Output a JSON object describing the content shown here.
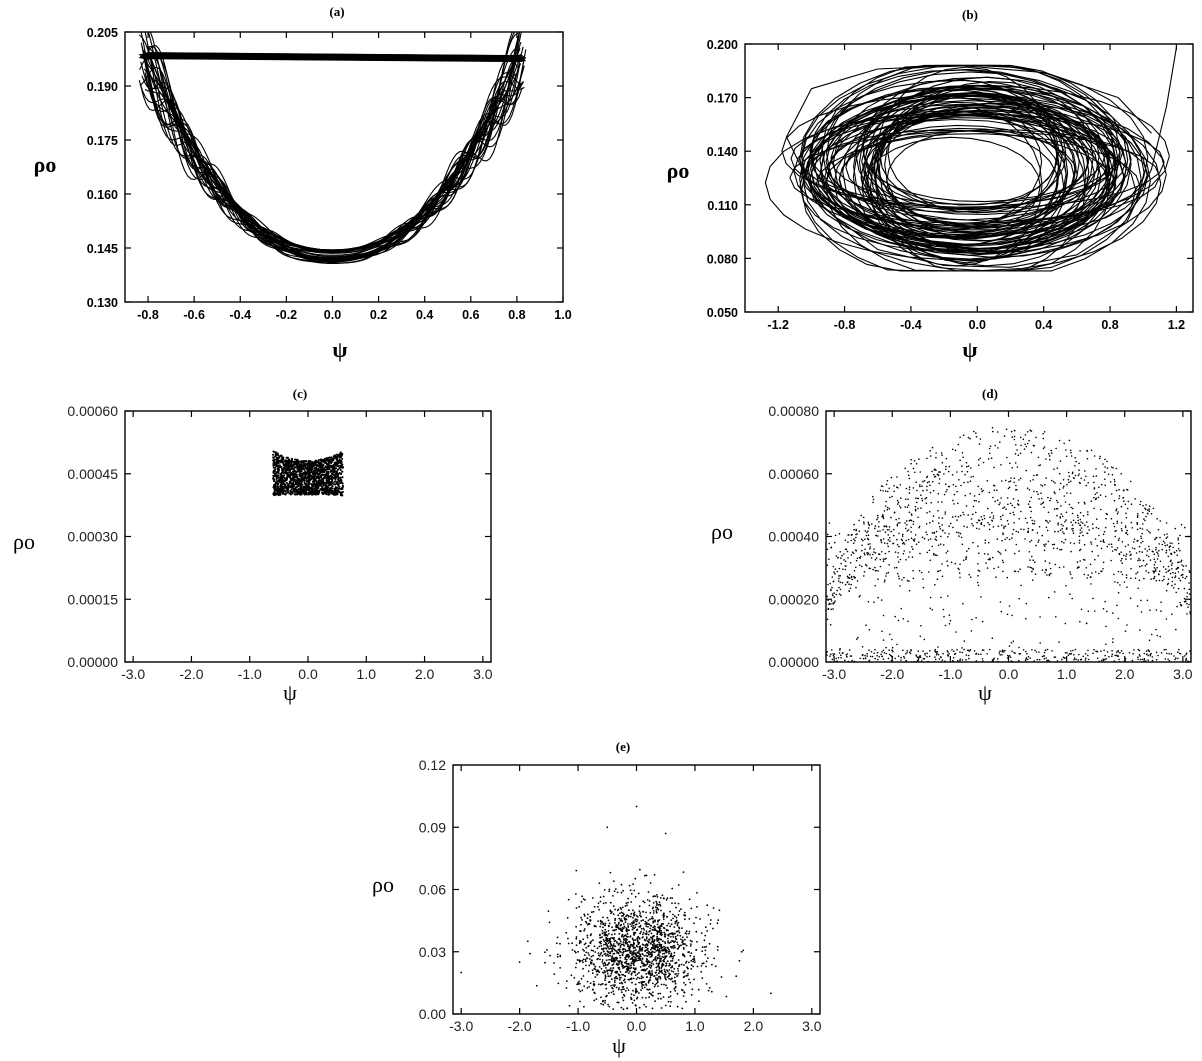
{
  "chart_data": [
    {
      "id": "a",
      "type": "line",
      "panel_label": "(a)",
      "xlabel": "ψ",
      "ylabel": "ρo",
      "xlim": [
        -0.9,
        1.0
      ],
      "ylim": [
        0.13,
        0.205
      ],
      "xticks": [
        -0.8,
        -0.6,
        -0.4,
        -0.2,
        0.0,
        0.2,
        0.4,
        0.6,
        0.8,
        1.0
      ],
      "xtick_labels": [
        "-0.8",
        "-0.6",
        "-0.4",
        "-0.2",
        "0.0",
        "0.2",
        "0.4",
        "0.6",
        "0.8",
        "1.0"
      ],
      "yticks": [
        0.13,
        0.145,
        0.16,
        0.175,
        0.19,
        0.205
      ],
      "ytick_labels": [
        "0.130",
        "0.145",
        "0.160",
        "0.175",
        "0.190",
        "0.205"
      ],
      "series": [
        {
          "style": "phase-trajectory",
          "x": [
            -0.8,
            -0.72,
            -0.62,
            -0.5,
            -0.38,
            -0.26,
            -0.14,
            -0.05,
            0.0,
            0.05,
            0.14,
            0.26,
            0.38,
            0.5,
            0.62,
            0.72,
            0.8
          ],
          "y": [
            0.198,
            0.191,
            0.181,
            0.17,
            0.161,
            0.153,
            0.146,
            0.142,
            0.141,
            0.142,
            0.146,
            0.153,
            0.161,
            0.17,
            0.181,
            0.191,
            0.198
          ]
        }
      ]
    },
    {
      "id": "b",
      "type": "line",
      "panel_label": "(b)",
      "xlabel": "ψ",
      "ylabel": "ρo",
      "xlim": [
        -1.4,
        1.3
      ],
      "ylim": [
        0.05,
        0.2
      ],
      "xticks": [
        -1.2,
        -0.8,
        -0.4,
        0.0,
        0.4,
        0.8,
        1.2
      ],
      "xtick_labels": [
        "-1.2",
        "-0.8",
        "-0.4",
        "0.0",
        "0.4",
        "0.8",
        "1.2"
      ],
      "yticks": [
        0.05,
        0.08,
        0.11,
        0.14,
        0.17,
        0.2
      ],
      "ytick_labels": [
        "0.050",
        "0.080",
        "0.110",
        "0.140",
        "0.170",
        "0.200"
      ],
      "series": [
        {
          "style": "phase-trajectory",
          "x": [
            1.2,
            1.14,
            1.05,
            0.9,
            0.6,
            0.2,
            -0.2,
            -0.6,
            -0.95,
            -1.15,
            -1.0,
            -0.6,
            -0.1,
            0.4,
            0.85,
            1.05
          ],
          "y": [
            0.198,
            0.165,
            0.13,
            0.1,
            0.082,
            0.075,
            0.076,
            0.085,
            0.11,
            0.148,
            0.175,
            0.186,
            0.188,
            0.184,
            0.17,
            0.15
          ]
        }
      ]
    },
    {
      "id": "c",
      "type": "scatter",
      "panel_label": "(c)",
      "xlabel": "ψ",
      "ylabel": "ρo",
      "xlim": [
        -3.14,
        3.14
      ],
      "ylim": [
        0.0,
        0.0006
      ],
      "xticks": [
        -3.0,
        -2.0,
        -1.0,
        0.0,
        1.0,
        2.0,
        3.0
      ],
      "xtick_labels": [
        "-3.0",
        "-2.0",
        "-1.0",
        "0.0",
        "1.0",
        "2.0",
        "3.0"
      ],
      "yticks": [
        0.0,
        0.00015,
        0.0003,
        0.00045,
        0.0006
      ],
      "ytick_labels": [
        "0.00000",
        "0.00015",
        "0.00030",
        "0.00045",
        "0.00060"
      ],
      "series": [
        {
          "style": "poincare-points",
          "x": [
            -0.6,
            -0.4,
            -0.2,
            0.0,
            0.2,
            0.4,
            0.6,
            -0.6,
            -0.3,
            0.0,
            0.3,
            0.6
          ],
          "y": [
            0.0005,
            0.00047,
            0.00046,
            0.00045,
            0.00046,
            0.00047,
            0.0005,
            0.0004,
            0.00042,
            0.00043,
            0.00042,
            0.0004
          ]
        }
      ]
    },
    {
      "id": "d",
      "type": "scatter",
      "panel_label": "(d)",
      "xlabel": "ψ",
      "ylabel": "ρo",
      "xlim": [
        -3.14,
        3.14
      ],
      "ylim": [
        0.0,
        0.0008
      ],
      "xticks": [
        -3.0,
        -2.0,
        -1.0,
        0.0,
        1.0,
        2.0,
        3.0
      ],
      "xtick_labels": [
        "-3.0",
        "-2.0",
        "-1.0",
        "0.0",
        "1.0",
        "2.0",
        "3.0"
      ],
      "yticks": [
        0.0,
        0.0002,
        0.0004,
        0.0006,
        0.0008
      ],
      "ytick_labels": [
        "0.00000",
        "0.00020",
        "0.00040",
        "0.00060",
        "0.00080"
      ],
      "series": [
        {
          "style": "poincare-points",
          "x": [
            -3.0,
            -2.5,
            -2.0,
            -1.5,
            -1.0,
            -0.5,
            0.0,
            0.5,
            1.0,
            1.5,
            2.0,
            2.5,
            3.0
          ],
          "y": [
            5e-05,
            0.00038,
            0.00052,
            0.00062,
            0.0007,
            0.00075,
            0.00077,
            0.00075,
            0.0007,
            0.00062,
            0.00052,
            0.00038,
            5e-05
          ]
        }
      ]
    },
    {
      "id": "e",
      "type": "scatter",
      "panel_label": "(e)",
      "xlabel": "ψ",
      "ylabel": "ρo",
      "xlim": [
        -3.14,
        3.14
      ],
      "ylim": [
        0.0,
        0.12
      ],
      "xticks": [
        -3.0,
        -2.0,
        -1.0,
        0.0,
        1.0,
        2.0,
        3.0
      ],
      "xtick_labels": [
        "-3.0",
        "-2.0",
        "-1.0",
        "0.0",
        "1.0",
        "2.0",
        "3.0"
      ],
      "yticks": [
        0.0,
        0.03,
        0.06,
        0.09,
        0.12
      ],
      "ytick_labels": [
        "0.00",
        "0.03",
        "0.06",
        "0.09",
        "0.12"
      ],
      "series": [
        {
          "style": "poincare-points",
          "x": [
            -3.0,
            -2.0,
            -1.0,
            -0.5,
            0.0,
            0.5,
            1.0,
            1.8,
            2.3,
            -0.5,
            0.0,
            0.5
          ],
          "y": [
            0.02,
            0.025,
            0.03,
            0.033,
            0.028,
            0.03,
            0.025,
            0.03,
            0.01,
            0.09,
            0.1,
            0.087
          ]
        }
      ]
    }
  ]
}
